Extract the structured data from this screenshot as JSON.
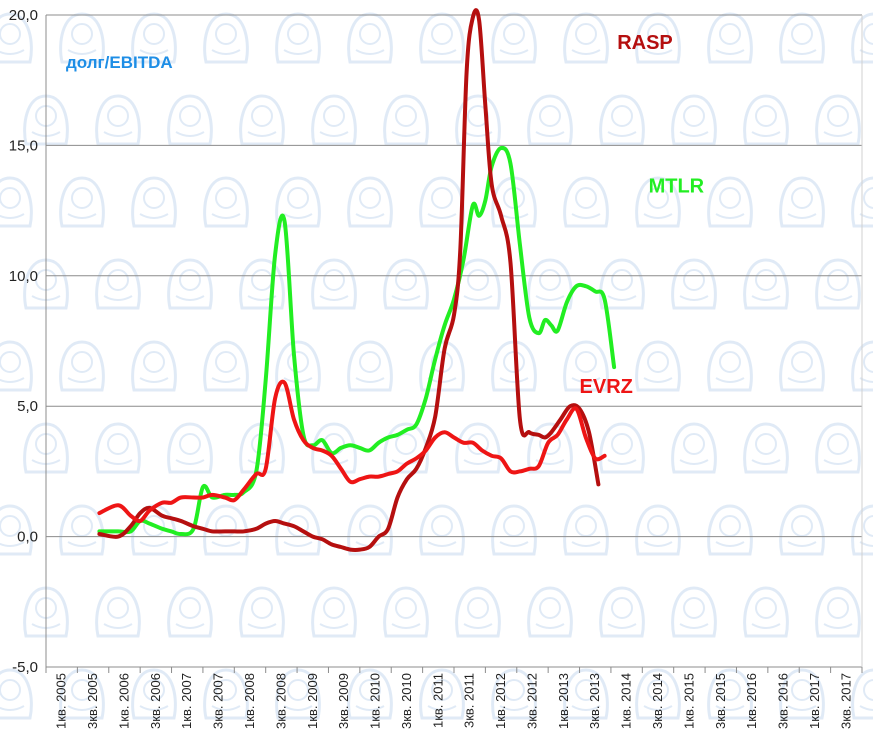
{
  "chart_data": {
    "type": "line",
    "title": "",
    "metric_label": "долг/EBITDA",
    "xlabel": "",
    "ylabel": "",
    "ylim": [
      -5,
      20
    ],
    "y_ticks": [
      "-5,0",
      "0,0",
      "5,0",
      "10,0",
      "15,0",
      "20,0"
    ],
    "y_tick_values": [
      -5,
      0,
      5,
      10,
      15,
      20
    ],
    "categories": [
      "1кв. 2005",
      "3кв. 2005",
      "1кв. 2006",
      "3кв. 2006",
      "1кв. 2007",
      "3кв. 2007",
      "1кв. 2008",
      "3кв. 2008",
      "1кв. 2009",
      "3кв. 2009",
      "1кв. 2010",
      "3кв. 2010",
      "1кв. 2011",
      "3кв. 2011",
      "1кв. 2012",
      "3кв. 2012",
      "1кв. 2013",
      "3кв. 2013",
      "1кв. 2014",
      "3кв. 2014",
      "1кв. 2015",
      "3кв. 2015",
      "1кв. 2016",
      "3кв. 2016",
      "1кв. 2017",
      "3кв. 2017"
    ],
    "grid": true,
    "series": [
      {
        "name": "MTLR",
        "color": "#22ee22",
        "label_position": [
          19.2,
          13.2
        ],
        "points": [
          [
            1.7,
            0.2
          ],
          [
            2.3,
            0.2
          ],
          [
            2.7,
            0.2
          ],
          [
            3.0,
            0.6
          ],
          [
            3.3,
            0.5
          ],
          [
            3.7,
            0.3
          ],
          [
            4.0,
            0.2
          ],
          [
            4.3,
            0.1
          ],
          [
            4.7,
            0.3
          ],
          [
            5.0,
            1.9
          ],
          [
            5.3,
            1.5
          ],
          [
            5.7,
            1.6
          ],
          [
            6.0,
            1.6
          ],
          [
            6.3,
            1.7
          ],
          [
            6.7,
            2.5
          ],
          [
            7.0,
            6.0
          ],
          [
            7.3,
            10.8
          ],
          [
            7.6,
            12.1
          ],
          [
            7.9,
            7.0
          ],
          [
            8.2,
            3.9
          ],
          [
            8.5,
            3.5
          ],
          [
            8.8,
            3.7
          ],
          [
            9.1,
            3.2
          ],
          [
            9.4,
            3.4
          ],
          [
            9.7,
            3.5
          ],
          [
            10.0,
            3.4
          ],
          [
            10.3,
            3.3
          ],
          [
            10.6,
            3.6
          ],
          [
            10.9,
            3.8
          ],
          [
            11.2,
            3.9
          ],
          [
            11.5,
            4.1
          ],
          [
            11.8,
            4.3
          ],
          [
            12.1,
            5.3
          ],
          [
            12.4,
            6.8
          ],
          [
            12.7,
            8.1
          ],
          [
            13.0,
            9.1
          ],
          [
            13.3,
            10.6
          ],
          [
            13.6,
            12.7
          ],
          [
            13.8,
            12.3
          ],
          [
            14.0,
            12.9
          ],
          [
            14.2,
            14.2
          ],
          [
            14.5,
            14.9
          ],
          [
            14.8,
            14.3
          ],
          [
            15.1,
            11.2
          ],
          [
            15.4,
            8.4
          ],
          [
            15.7,
            7.8
          ],
          [
            15.9,
            8.3
          ],
          [
            16.1,
            8.1
          ],
          [
            16.3,
            7.9
          ],
          [
            16.6,
            9.0
          ],
          [
            16.9,
            9.6
          ],
          [
            17.2,
            9.6
          ],
          [
            17.5,
            9.4
          ],
          [
            17.8,
            9.1
          ],
          [
            18.1,
            6.5
          ]
        ]
      },
      {
        "name": "RASP",
        "color": "#b50f0f",
        "label_position": [
          18.2,
          18.7
        ],
        "points": [
          [
            1.7,
            0.1
          ],
          [
            2.3,
            0.0
          ],
          [
            2.7,
            0.4
          ],
          [
            3.0,
            0.9
          ],
          [
            3.3,
            1.1
          ],
          [
            3.7,
            0.8
          ],
          [
            4.0,
            0.7
          ],
          [
            4.3,
            0.6
          ],
          [
            4.7,
            0.4
          ],
          [
            5.0,
            0.3
          ],
          [
            5.3,
            0.2
          ],
          [
            5.7,
            0.2
          ],
          [
            6.0,
            0.2
          ],
          [
            6.3,
            0.2
          ],
          [
            6.7,
            0.3
          ],
          [
            7.0,
            0.5
          ],
          [
            7.3,
            0.6
          ],
          [
            7.6,
            0.5
          ],
          [
            7.9,
            0.4
          ],
          [
            8.2,
            0.2
          ],
          [
            8.5,
            0.0
          ],
          [
            8.8,
            -0.1
          ],
          [
            9.1,
            -0.3
          ],
          [
            9.4,
            -0.4
          ],
          [
            9.7,
            -0.5
          ],
          [
            10.0,
            -0.5
          ],
          [
            10.3,
            -0.4
          ],
          [
            10.6,
            0.0
          ],
          [
            10.9,
            0.3
          ],
          [
            11.2,
            1.5
          ],
          [
            11.5,
            2.2
          ],
          [
            11.8,
            2.6
          ],
          [
            12.1,
            3.4
          ],
          [
            12.4,
            4.6
          ],
          [
            12.7,
            7.2
          ],
          [
            13.0,
            8.5
          ],
          [
            13.2,
            11.0
          ],
          [
            13.4,
            17.8
          ],
          [
            13.6,
            19.9
          ],
          [
            13.8,
            19.8
          ],
          [
            14.0,
            16.5
          ],
          [
            14.2,
            13.5
          ],
          [
            14.5,
            12.3
          ],
          [
            14.8,
            10.5
          ],
          [
            15.1,
            4.5
          ],
          [
            15.4,
            4.0
          ],
          [
            15.7,
            3.9
          ],
          [
            15.9,
            3.8
          ],
          [
            16.1,
            4.0
          ],
          [
            16.4,
            4.5
          ],
          [
            16.7,
            5.0
          ],
          [
            17.0,
            4.9
          ],
          [
            17.3,
            4.0
          ],
          [
            17.6,
            2.0
          ]
        ]
      },
      {
        "name": "EVRZ",
        "color": "#ee1515",
        "label_position": [
          17.0,
          5.5
        ],
        "points": [
          [
            1.7,
            0.9
          ],
          [
            2.3,
            1.2
          ],
          [
            2.7,
            0.8
          ],
          [
            3.0,
            0.6
          ],
          [
            3.3,
            1.0
          ],
          [
            3.7,
            1.3
          ],
          [
            4.0,
            1.3
          ],
          [
            4.3,
            1.5
          ],
          [
            4.7,
            1.5
          ],
          [
            5.0,
            1.5
          ],
          [
            5.3,
            1.6
          ],
          [
            5.7,
            1.5
          ],
          [
            6.0,
            1.4
          ],
          [
            6.3,
            1.8
          ],
          [
            6.7,
            2.4
          ],
          [
            7.0,
            2.6
          ],
          [
            7.3,
            5.3
          ],
          [
            7.6,
            5.9
          ],
          [
            7.9,
            4.5
          ],
          [
            8.2,
            3.7
          ],
          [
            8.5,
            3.4
          ],
          [
            8.8,
            3.3
          ],
          [
            9.1,
            3.1
          ],
          [
            9.4,
            2.6
          ],
          [
            9.7,
            2.1
          ],
          [
            10.0,
            2.2
          ],
          [
            10.3,
            2.3
          ],
          [
            10.6,
            2.3
          ],
          [
            10.9,
            2.4
          ],
          [
            11.2,
            2.5
          ],
          [
            11.5,
            2.8
          ],
          [
            11.8,
            3.0
          ],
          [
            12.1,
            3.3
          ],
          [
            12.4,
            3.8
          ],
          [
            12.7,
            4.0
          ],
          [
            13.0,
            3.8
          ],
          [
            13.3,
            3.6
          ],
          [
            13.6,
            3.6
          ],
          [
            13.9,
            3.3
          ],
          [
            14.2,
            3.1
          ],
          [
            14.5,
            3.0
          ],
          [
            14.8,
            2.5
          ],
          [
            15.1,
            2.5
          ],
          [
            15.4,
            2.6
          ],
          [
            15.7,
            2.7
          ],
          [
            16.0,
            3.6
          ],
          [
            16.3,
            3.9
          ],
          [
            16.6,
            4.5
          ],
          [
            16.9,
            4.9
          ],
          [
            17.2,
            3.8
          ],
          [
            17.5,
            3.0
          ],
          [
            17.8,
            3.1
          ]
        ]
      }
    ]
  }
}
